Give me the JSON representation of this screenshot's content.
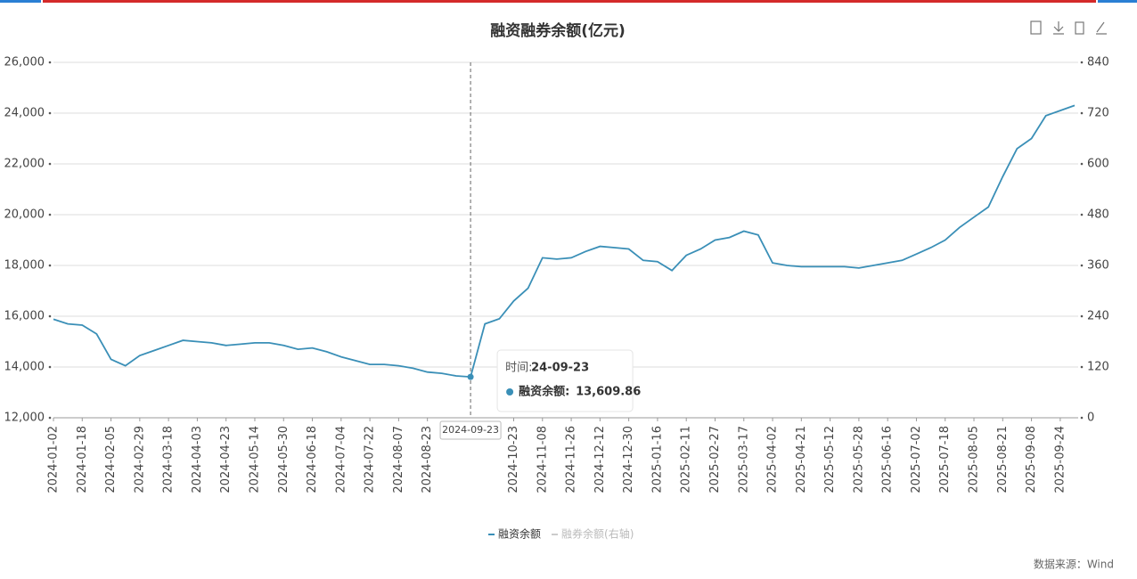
{
  "chart_data": {
    "type": "line",
    "title": "融资融券余额(亿元)",
    "source": "数据来源：Wind",
    "x": [
      "2024-01-02",
      null,
      "2024-01-18",
      null,
      "2024-02-05",
      null,
      "2024-02-29",
      null,
      "2024-03-18",
      null,
      "2024-04-03",
      null,
      "2024-04-23",
      null,
      "2024-05-14",
      null,
      "2024-05-30",
      null,
      "2024-06-18",
      null,
      "2024-07-04",
      null,
      "2024-07-22",
      null,
      "2024-08-07",
      null,
      "2024-08-23",
      null,
      null,
      "2024-09-23",
      null,
      null,
      "2024-10-23",
      null,
      "2024-11-08",
      null,
      "2024-11-26",
      null,
      "2024-12-12",
      null,
      "2024-12-30",
      null,
      "2025-01-16",
      null,
      "2025-02-11",
      null,
      "2025-02-27",
      null,
      "2025-03-17",
      null,
      "2025-04-02",
      null,
      "2025-04-21",
      null,
      "2025-05-12",
      null,
      "2025-05-28",
      null,
      "2025-06-16",
      null,
      "2025-07-02",
      null,
      "2025-07-18",
      null,
      "2025-08-05",
      null,
      "2025-08-21",
      null,
      "2025-09-08",
      null,
      "2025-09-24",
      null
    ],
    "series": [
      {
        "name": "融资余额",
        "color": "#3a8fb7",
        "values": [
          15880,
          15700,
          15650,
          15300,
          14300,
          14050,
          14450,
          14650,
          14850,
          15050,
          15000,
          14950,
          14850,
          14900,
          14950,
          14950,
          14850,
          14700,
          14750,
          14600,
          14400,
          14250,
          14100,
          14100,
          14050,
          13950,
          13800,
          13750,
          13650,
          13609.86,
          15700,
          15900,
          16600,
          17100,
          18300,
          18250,
          18300,
          18550,
          18750,
          18700,
          18650,
          18200,
          18150,
          17800,
          18400,
          18650,
          19000,
          19100,
          19350,
          19200,
          18100,
          18000,
          17950,
          17950,
          17950,
          17950,
          17900,
          18000,
          18100,
          18200,
          18450,
          18700,
          19000,
          19500,
          19900,
          20300,
          21500,
          22600,
          23000,
          23900,
          24100,
          24300
        ]
      },
      {
        "name": "融券余额(右轴)",
        "color": "#cccccc",
        "axis": "y2",
        "disabled": true,
        "values": [
          null,
          null,
          null,
          null,
          null,
          null,
          null,
          null,
          null,
          null,
          null,
          null,
          null,
          null,
          null,
          null,
          null,
          null,
          null,
          null,
          null,
          null,
          null,
          null,
          null,
          null,
          null,
          null,
          null,
          null,
          null,
          null,
          null,
          null,
          null,
          null,
          null,
          null,
          null,
          null,
          null,
          null,
          null,
          null,
          null,
          null,
          null,
          null,
          null,
          null,
          null,
          null,
          null,
          null,
          null,
          null,
          null,
          null,
          null,
          null,
          null,
          null,
          null,
          null,
          null,
          null,
          null,
          null,
          null,
          null,
          null,
          null
        ]
      }
    ],
    "ylim": [
      12000,
      26000
    ],
    "yticks": [
      {
        "value": 12000,
        "label": "12,000"
      },
      {
        "value": 14000,
        "label": "14,000"
      },
      {
        "value": 16000,
        "label": "16,000"
      },
      {
        "value": 18000,
        "label": "18,000"
      },
      {
        "value": 20000,
        "label": "20,000"
      },
      {
        "value": 22000,
        "label": "22,000"
      },
      {
        "value": 24000,
        "label": "24,000"
      },
      {
        "value": 26000,
        "label": "26,000"
      }
    ],
    "y2lim": [
      0,
      840
    ],
    "y2ticks": [
      0,
      120,
      240,
      360,
      480,
      600,
      720,
      840
    ],
    "grid": true,
    "tooltip": {
      "index": 29,
      "time_label": "时间:",
      "time": "24-09-23",
      "series_label": "融资余额:",
      "value_label": "13,609.86"
    }
  }
}
